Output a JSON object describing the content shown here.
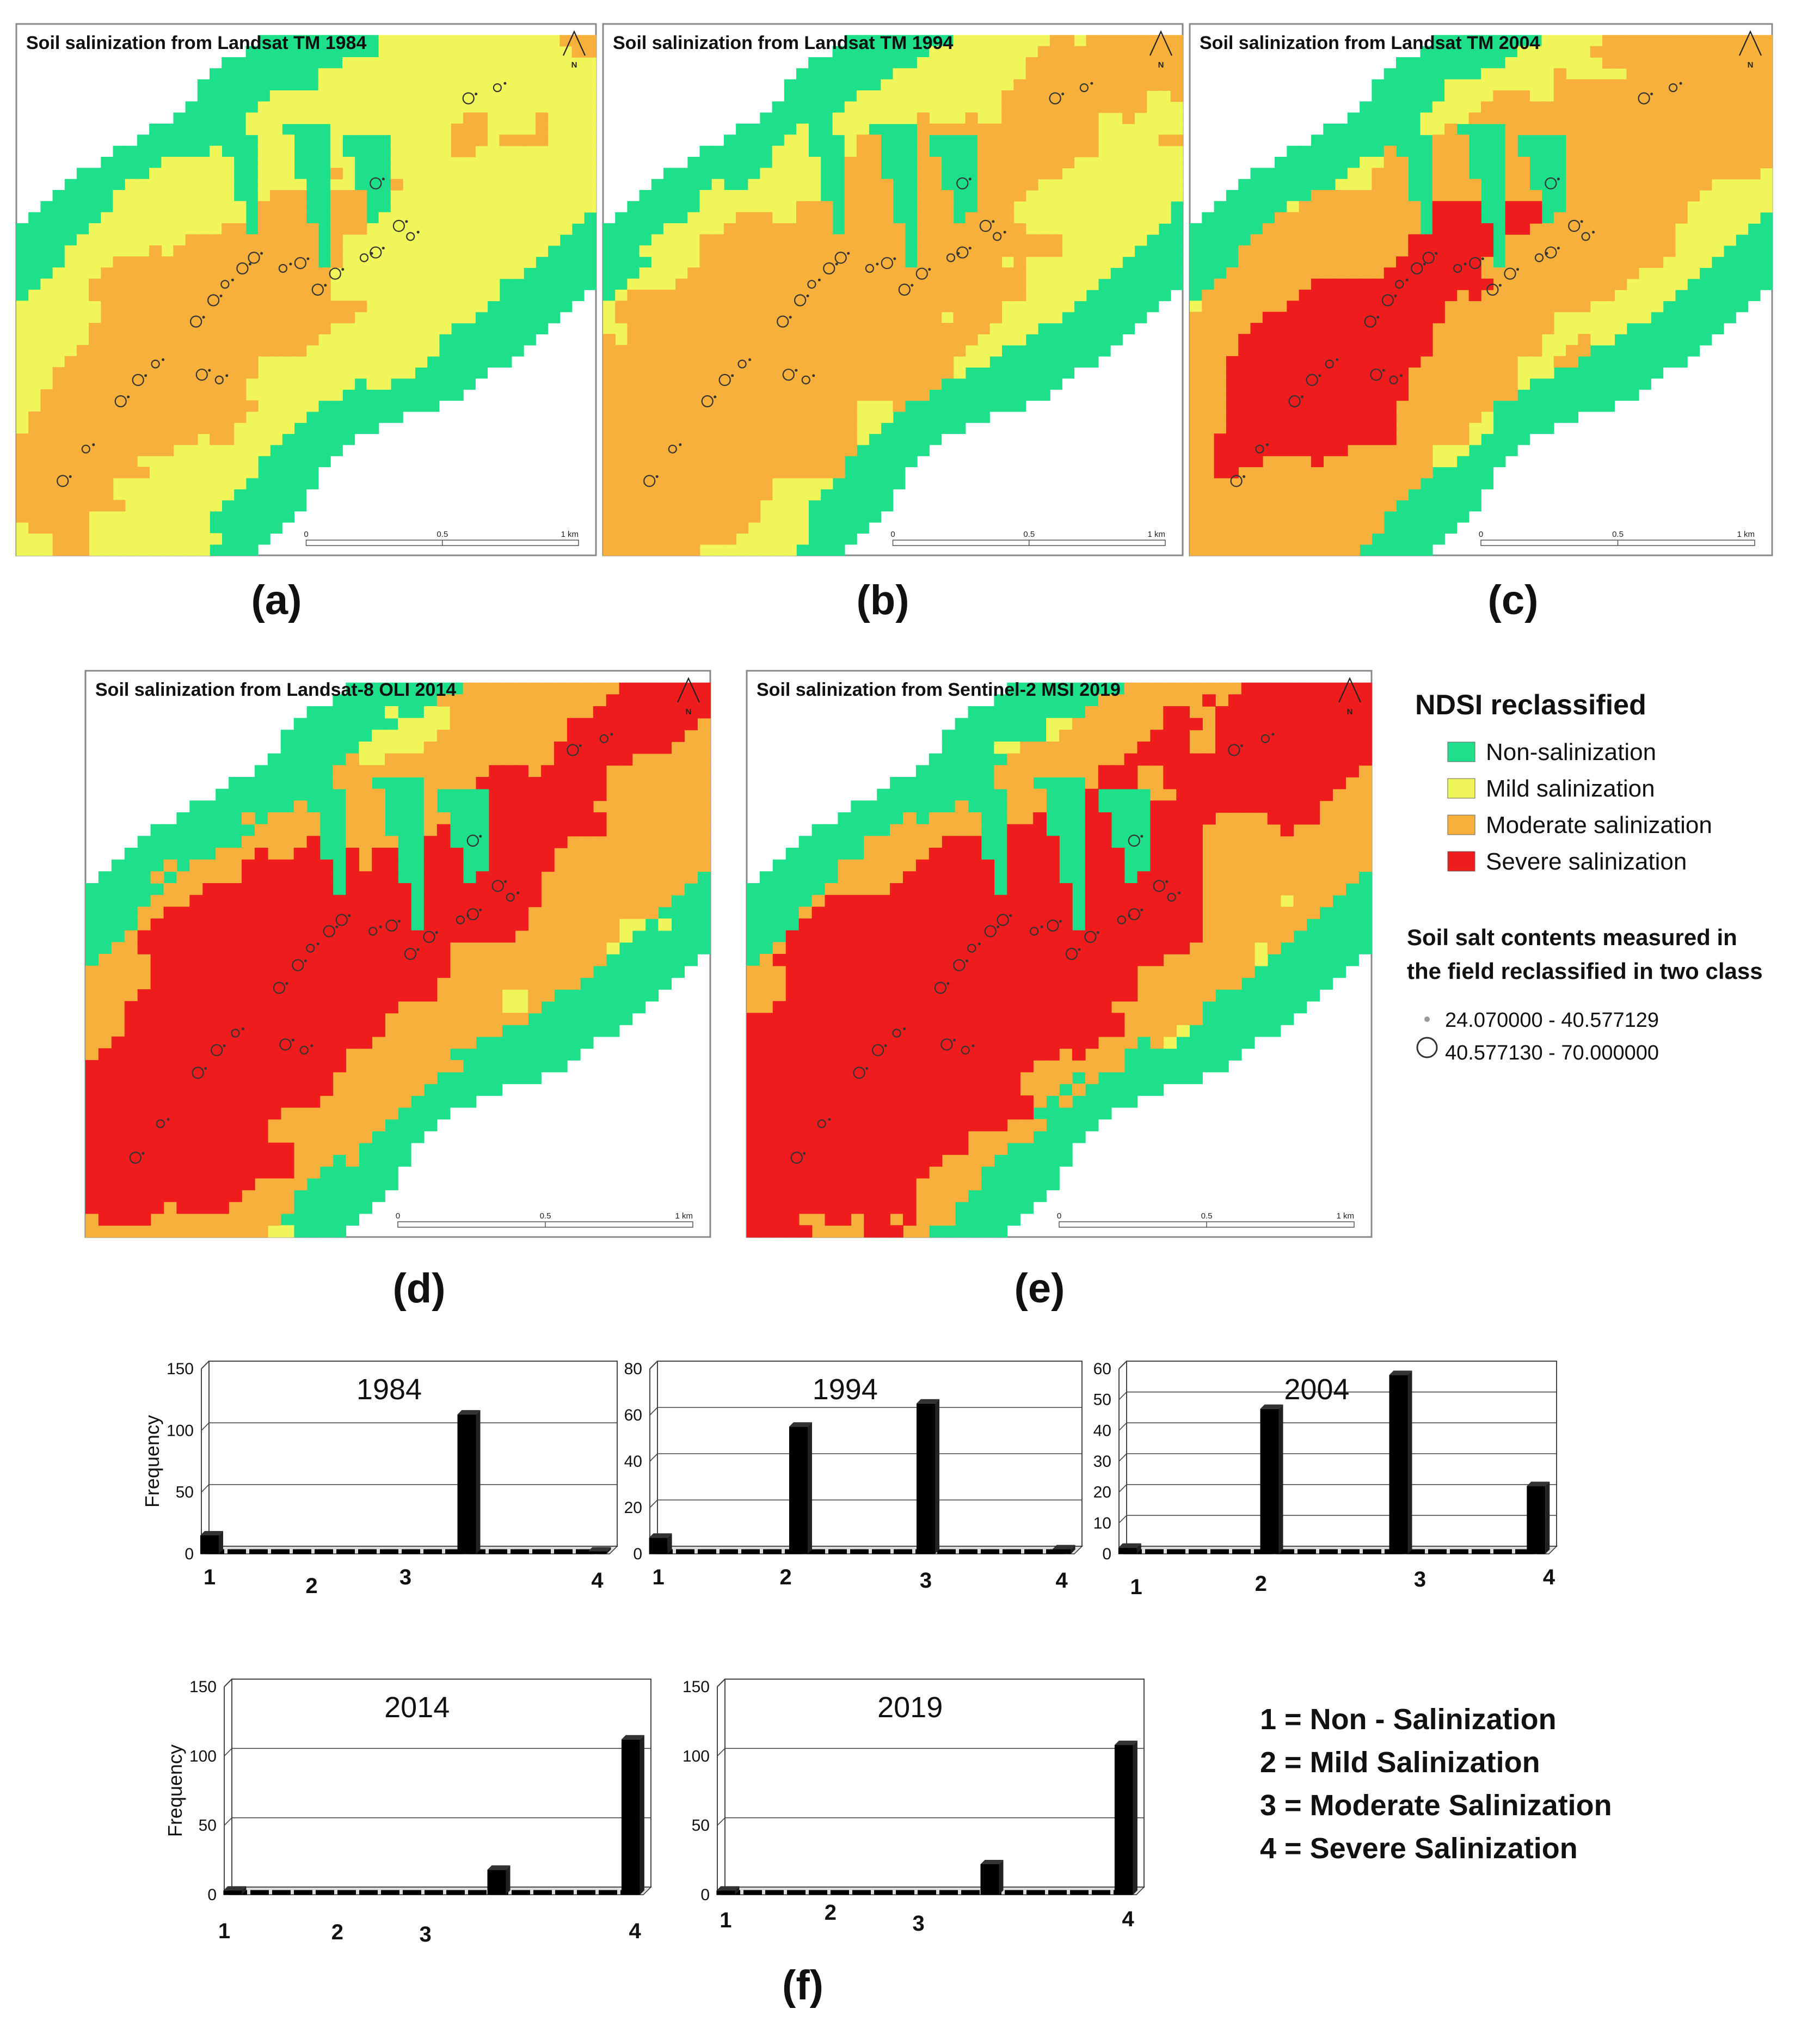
{
  "colors": {
    "non": "#1fe08a",
    "mild": "#f0f55a",
    "moderate": "#f7b03c",
    "severe": "#ee1c1c",
    "bar": "#000000"
  },
  "maps": [
    {
      "id": "a",
      "title": "Soil salinization from Landsat TM 1984",
      "label": "(a)",
      "stage": 0
    },
    {
      "id": "b",
      "title": "Soil salinization from Landsat TM 1994",
      "label": "(b)",
      "stage": 1
    },
    {
      "id": "c",
      "title": "Soil salinization from Landsat TM 2004",
      "label": "(c)",
      "stage": 2
    },
    {
      "id": "d",
      "title": "Soil salinization from Landsat-8 OLI 2014",
      "label": "(d)",
      "stage": 3
    },
    {
      "id": "e",
      "title": "Soil salinization from Sentinel-2 MSI 2019",
      "label": "(e)",
      "stage": 4
    }
  ],
  "north_label": "N",
  "scalebar": {
    "ticks": [
      "0",
      "0.5",
      "1 km"
    ]
  },
  "legend": {
    "title": "NDSI reclassified",
    "classes": [
      {
        "label": "Non-salinization",
        "color": "#1fe08a"
      },
      {
        "label": "Mild salinization",
        "color": "#f0f55a"
      },
      {
        "label": "Moderate salinization",
        "color": "#f7b03c"
      },
      {
        "label": "Severe salinization",
        "color": "#ee1c1c"
      }
    ],
    "points_title_line1": "Soil salt contents measured in",
    "points_title_line2": "the field reclassified in two class",
    "points": [
      {
        "label": "24.070000 - 40.577129",
        "symbol": "small-dot"
      },
      {
        "label": "40.577130 - 70.000000",
        "symbol": "open-circle"
      }
    ]
  },
  "figure_label": "(f)",
  "chart_data": [
    {
      "type": "bar",
      "title": "1984",
      "categories": [
        "1",
        "2",
        "3",
        "4"
      ],
      "values": [
        15,
        0,
        113,
        2
      ],
      "ylim": [
        0,
        150
      ],
      "yticks": [
        0,
        50,
        100,
        150
      ],
      "ylabel": "Frequency"
    },
    {
      "type": "bar",
      "title": "1994",
      "categories": [
        "1",
        "2",
        "3",
        "4"
      ],
      "values": [
        7,
        55,
        65,
        2
      ],
      "ylim": [
        0,
        80
      ],
      "yticks": [
        0,
        20,
        40,
        60,
        80
      ],
      "ylabel": ""
    },
    {
      "type": "bar",
      "title": "2004",
      "categories": [
        "1",
        "2",
        "3",
        "4"
      ],
      "values": [
        2,
        47,
        58,
        22
      ],
      "ylim": [
        0,
        60
      ],
      "yticks": [
        0,
        10,
        20,
        30,
        40,
        50,
        60
      ],
      "ylabel": ""
    },
    {
      "type": "bar",
      "title": "2014",
      "categories": [
        "1",
        "2",
        "3",
        "4"
      ],
      "values": [
        3,
        0,
        18,
        112
      ],
      "ylim": [
        0,
        150
      ],
      "yticks": [
        0,
        50,
        100,
        150
      ],
      "ylabel": "Frequency"
    },
    {
      "type": "bar",
      "title": "2019",
      "categories": [
        "1",
        "2",
        "3",
        "4"
      ],
      "values": [
        3,
        0,
        22,
        108
      ],
      "ylim": [
        0,
        150
      ],
      "yticks": [
        0,
        50,
        100,
        150
      ],
      "ylabel": ""
    }
  ],
  "category_legend": [
    "1 = Non - Salinization",
    "2 = Mild Salinization",
    "3 = Moderate Salinization",
    "4 = Severe Salinization"
  ]
}
